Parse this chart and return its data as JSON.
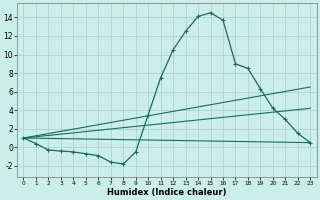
{
  "xlabel": "Humidex (Indice chaleur)",
  "background_color": "#cceee8",
  "grid_color": "#aad4ce",
  "line_color": "#1a6b5a",
  "xlim": [
    -0.5,
    23.5
  ],
  "ylim": [
    -3.2,
    15.5
  ],
  "yticks": [
    -2,
    0,
    2,
    4,
    6,
    8,
    10,
    12,
    14
  ],
  "curve1_x": [
    0,
    1,
    2,
    3,
    4,
    5,
    6,
    7,
    8,
    9,
    10,
    11,
    12,
    13,
    14,
    15,
    16,
    17,
    18,
    19,
    20,
    21,
    22,
    23
  ],
  "curve1_y": [
    1.0,
    0.4,
    -0.3,
    -0.4,
    -0.5,
    -0.7,
    -0.9,
    -1.6,
    -1.8,
    -0.5,
    3.5,
    7.5,
    10.5,
    12.5,
    14.1,
    14.5,
    13.7,
    9.0,
    8.5,
    6.3,
    4.2,
    3.0,
    1.5,
    0.5
  ],
  "line1_y_end": 0.5,
  "line2_y_end": 4.2,
  "line3_y_end": 6.5,
  "lines_y_start": 1.0
}
